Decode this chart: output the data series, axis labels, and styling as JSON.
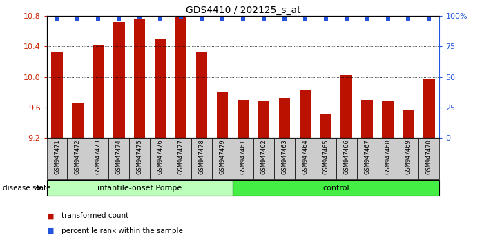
{
  "title": "GDS4410 / 202125_s_at",
  "samples": [
    "GSM947471",
    "GSM947472",
    "GSM947473",
    "GSM947474",
    "GSM947475",
    "GSM947476",
    "GSM947477",
    "GSM947478",
    "GSM947479",
    "GSM947461",
    "GSM947462",
    "GSM947463",
    "GSM947464",
    "GSM947465",
    "GSM947466",
    "GSM947467",
    "GSM947468",
    "GSM947469",
    "GSM947470"
  ],
  "transformed_count": [
    10.32,
    9.65,
    10.41,
    10.72,
    10.76,
    10.5,
    10.79,
    10.33,
    9.8,
    9.7,
    9.68,
    9.72,
    9.83,
    9.52,
    10.02,
    9.7,
    9.69,
    9.57,
    9.97
  ],
  "percentile_rank": [
    97,
    97,
    98,
    98,
    99,
    98,
    99,
    97,
    97,
    97,
    97,
    97,
    97,
    97,
    97,
    97,
    97,
    97,
    97
  ],
  "group_labels": [
    "infantile-onset Pompe",
    "control"
  ],
  "group_sizes": [
    9,
    10
  ],
  "ylim": [
    9.2,
    10.8
  ],
  "yticks": [
    9.2,
    9.6,
    10.0,
    10.4,
    10.8
  ],
  "right_yticks": [
    0,
    25,
    50,
    75,
    100
  ],
  "right_ytick_labels": [
    "0",
    "25",
    "50",
    "75",
    "100%"
  ],
  "bar_color": "#BB1100",
  "dot_color": "#2255DD",
  "title_fontsize": 10,
  "disease_state_label": "disease state",
  "legend_items": [
    "transformed count",
    "percentile rank within the sample"
  ],
  "group_color_1": "#BBFFBB",
  "group_color_2": "#44EE44"
}
